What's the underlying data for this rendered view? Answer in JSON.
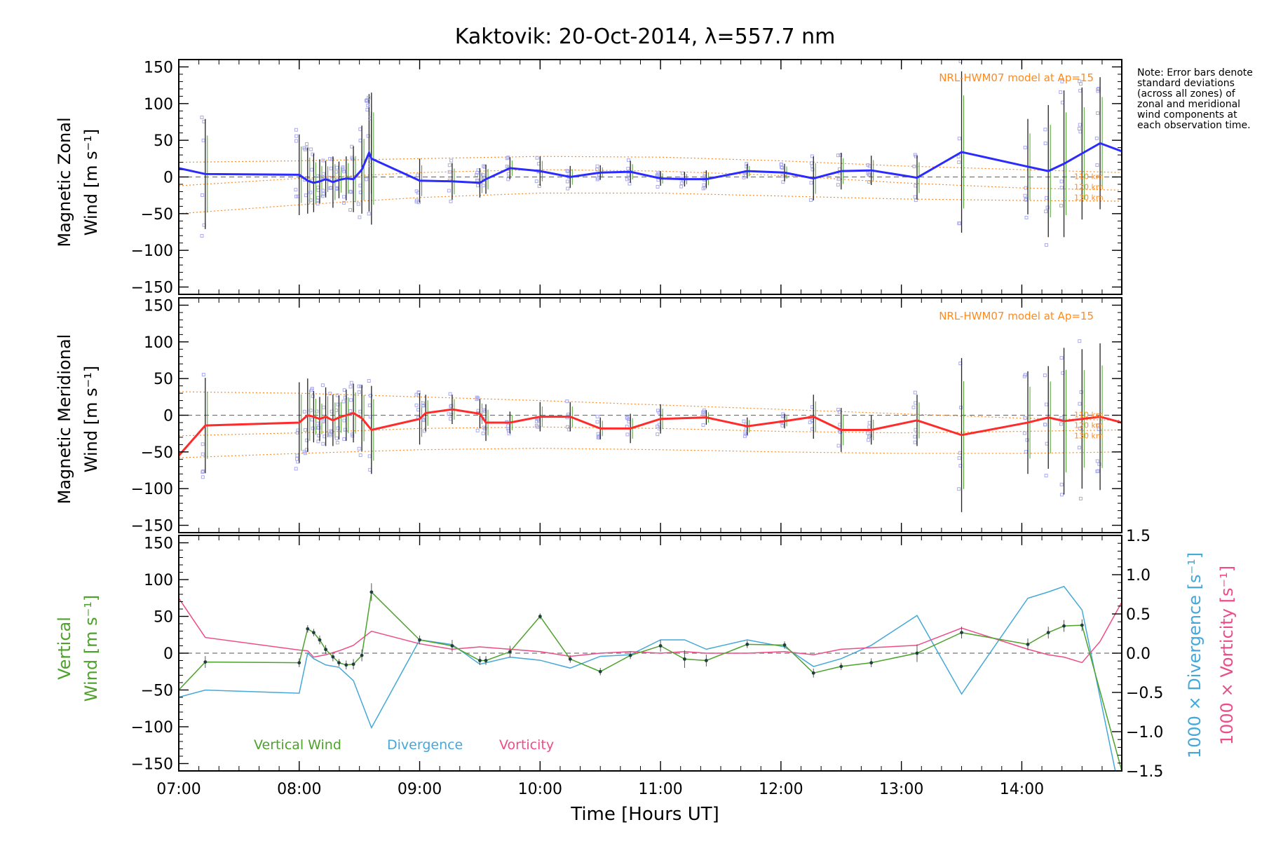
{
  "title": "Kaktovik: 20-Oct-2014, λ=557.7 nm",
  "note": "Note: Error bars denote standard deviations (across all zones) of zonal and meridional wind components at each observation time.",
  "colors": {
    "zonal": "#2b2bff",
    "meridional": "#ff2b2b",
    "vertical": "#4ca22a",
    "divergence": "#45a8d8",
    "vorticity": "#ee4c88",
    "model": "#ff8a1e",
    "scatter": "#aaaaee",
    "errorbar": "#222222",
    "zero": "#777777"
  },
  "chart_data": [
    {
      "name": "zonal",
      "type": "line",
      "ylabel_line1": "Magnetic Zonal",
      "ylabel_line2": "Wind [m s⁻¹]",
      "ylim": [
        -160,
        160
      ],
      "yticks": [
        150,
        100,
        50,
        0,
        -50,
        -100,
        -150
      ],
      "xlim": [
        7.0,
        14.83
      ],
      "model_label": "NRL-HWM07 model at Ap=15",
      "model_levels": [
        "110 km",
        "120 km",
        "130 km"
      ],
      "model_curves": [
        {
          "x": [
            7.0,
            8.0,
            9.0,
            10.0,
            11.0,
            12.0,
            13.0,
            14.0,
            14.83
          ],
          "y": [
            20,
            22,
            25,
            28,
            27,
            22,
            15,
            10,
            6
          ]
        },
        {
          "x": [
            7.0,
            8.0,
            9.0,
            10.0,
            11.0,
            12.0,
            13.0,
            14.0,
            14.83
          ],
          "y": [
            -12,
            -2,
            6,
            10,
            8,
            2,
            -8,
            -15,
            -18
          ]
        },
        {
          "x": [
            7.0,
            8.0,
            9.0,
            10.0,
            11.0,
            12.0,
            13.0,
            14.0,
            14.83
          ],
          "y": [
            -50,
            -38,
            -28,
            -22,
            -22,
            -26,
            -30,
            -32,
            -33
          ]
        }
      ],
      "x": [
        7.0,
        7.22,
        8.0,
        8.07,
        8.12,
        8.17,
        8.22,
        8.28,
        8.33,
        8.39,
        8.45,
        8.52,
        8.58,
        8.6,
        9.0,
        9.27,
        9.5,
        9.55,
        9.75,
        10.0,
        10.25,
        10.5,
        10.75,
        11.0,
        11.2,
        11.38,
        11.72,
        12.03,
        12.27,
        12.5,
        12.75,
        13.13,
        13.5,
        14.05,
        14.22,
        14.35,
        14.5,
        14.65,
        14.83
      ],
      "y": [
        12,
        4,
        3,
        -5,
        -8,
        -6,
        -3,
        -7,
        -4,
        -2,
        -3,
        10,
        33,
        25,
        -5,
        -6,
        -8,
        -3,
        12,
        8,
        0,
        6,
        7,
        -2,
        -3,
        -3,
        8,
        6,
        -2,
        8,
        9,
        -1,
        34,
        14,
        8,
        18,
        32,
        46,
        35
      ],
      "err": [
        0,
        75,
        55,
        45,
        40,
        30,
        25,
        35,
        25,
        30,
        45,
        60,
        80,
        90,
        30,
        25,
        20,
        20,
        15,
        20,
        15,
        10,
        15,
        10,
        10,
        12,
        10,
        12,
        30,
        25,
        20,
        30,
        110,
        65,
        90,
        100,
        90,
        90,
        0
      ]
    },
    {
      "name": "meridional",
      "type": "line",
      "ylabel_line1": "Magnetic Meridional",
      "ylabel_line2": "Wind [m s⁻¹]",
      "ylim": [
        -160,
        160
      ],
      "yticks": [
        150,
        100,
        50,
        0,
        -50,
        -100,
        -150
      ],
      "xlim": [
        7.0,
        14.83
      ],
      "model_label": "NRL-HWM07 model at Ap=15",
      "model_levels": [
        "110 km",
        "120 km",
        "130 km"
      ],
      "model_curves": [
        {
          "x": [
            7.0,
            8.0,
            9.0,
            10.0,
            11.0,
            12.0,
            13.0,
            14.0,
            14.83
          ],
          "y": [
            32,
            30,
            25,
            20,
            14,
            8,
            2,
            -4,
            -7
          ]
        },
        {
          "x": [
            7.0,
            8.0,
            9.0,
            10.0,
            11.0,
            12.0,
            13.0,
            14.0,
            14.83
          ],
          "y": [
            -28,
            -24,
            -18,
            -16,
            -18,
            -22,
            -24,
            -22,
            -20
          ]
        },
        {
          "x": [
            7.0,
            8.0,
            9.0,
            10.0,
            11.0,
            12.0,
            13.0,
            14.0,
            14.83
          ],
          "y": [
            -58,
            -52,
            -47,
            -45,
            -47,
            -50,
            -52,
            -52,
            -50
          ]
        }
      ],
      "x": [
        7.0,
        7.22,
        8.0,
        8.07,
        8.12,
        8.17,
        8.22,
        8.28,
        8.33,
        8.39,
        8.45,
        8.52,
        8.6,
        9.0,
        9.05,
        9.27,
        9.5,
        9.55,
        9.75,
        10.0,
        10.25,
        10.5,
        10.75,
        11.0,
        11.38,
        11.72,
        12.03,
        12.27,
        12.5,
        12.75,
        13.13,
        13.5,
        14.05,
        14.22,
        14.35,
        14.5,
        14.65,
        14.83
      ],
      "y": [
        -55,
        -14,
        -10,
        0,
        -2,
        -5,
        -2,
        -7,
        -3,
        0,
        3,
        -4,
        -20,
        -5,
        3,
        8,
        2,
        -10,
        -10,
        -2,
        -2,
        -18,
        -18,
        -5,
        -3,
        -15,
        -8,
        -2,
        -20,
        -20,
        -7,
        -27,
        -10,
        -3,
        -8,
        -5,
        -2,
        -10
      ],
      "err": [
        0,
        65,
        55,
        50,
        35,
        30,
        40,
        35,
        30,
        35,
        40,
        45,
        60,
        35,
        25,
        20,
        20,
        25,
        15,
        20,
        20,
        15,
        20,
        20,
        10,
        12,
        10,
        30,
        30,
        20,
        35,
        105,
        70,
        70,
        100,
        95,
        100,
        0
      ]
    },
    {
      "name": "vertical",
      "type": "line",
      "ylabel_line1": "Vertical",
      "ylabel_line2": "Wind [m s⁻¹]",
      "ylim": [
        -160,
        160
      ],
      "yticks": [
        150,
        100,
        50,
        0,
        -50,
        -100,
        -150
      ],
      "y2lim": [
        -1.5,
        1.5
      ],
      "y2ticks": [
        1.5,
        1.0,
        0.5,
        0.0,
        -0.5,
        -1.0,
        -1.5
      ],
      "y2tick_labels": [
        "1.5",
        "1.0",
        "0.5",
        "0.0",
        "−0.5",
        "−1.0",
        "−1.5"
      ],
      "y2label_div": "1000 × Divergence [s⁻¹]",
      "y2label_vor": "1000 × Vorticity [s⁻¹]",
      "xlim": [
        7.0,
        14.83
      ],
      "xticks": [
        7.0,
        8.0,
        9.0,
        10.0,
        11.0,
        12.0,
        13.0,
        14.0
      ],
      "xtick_labels": [
        "07:00",
        "08:00",
        "09:00",
        "10:00",
        "11:00",
        "12:00",
        "13:00",
        "14:00"
      ],
      "xlabel": "Time [Hours UT]",
      "legend": [
        "Vertical Wind",
        "Divergence",
        "Vorticity"
      ],
      "vertical_wind": {
        "x": [
          7.0,
          7.22,
          8.0,
          8.07,
          8.12,
          8.17,
          8.22,
          8.28,
          8.33,
          8.39,
          8.45,
          8.52,
          8.6,
          9.0,
          9.27,
          9.5,
          9.55,
          9.75,
          10.0,
          10.25,
          10.5,
          10.75,
          11.0,
          11.2,
          11.38,
          11.72,
          12.03,
          12.27,
          12.5,
          12.75,
          13.13,
          13.5,
          14.05,
          14.22,
          14.35,
          14.5,
          14.83
        ],
        "y": [
          -50,
          -12,
          -13,
          33,
          28,
          18,
          5,
          -5,
          -13,
          -16,
          -15,
          -3,
          83,
          18,
          10,
          -10,
          -10,
          2,
          50,
          -8,
          -25,
          -3,
          10,
          -8,
          -10,
          12,
          11,
          -27,
          -18,
          -13,
          0,
          28,
          12,
          28,
          37,
          38,
          -160
        ],
        "err": [
          0,
          8,
          6,
          5,
          5,
          6,
          6,
          6,
          5,
          6,
          7,
          8,
          12,
          6,
          8,
          6,
          6,
          8,
          4,
          5,
          5,
          5,
          8,
          12,
          8,
          5,
          5,
          6,
          5,
          6,
          12,
          8,
          8,
          8,
          8,
          8,
          0
        ]
      },
      "divergence": {
        "x": [
          7.0,
          7.22,
          8.0,
          8.07,
          8.12,
          8.22,
          8.33,
          8.45,
          8.6,
          9.0,
          9.27,
          9.5,
          9.75,
          10.0,
          10.25,
          10.5,
          10.75,
          11.0,
          11.2,
          11.38,
          11.72,
          12.03,
          12.27,
          12.5,
          12.75,
          13.13,
          13.5,
          14.05,
          14.22,
          14.35,
          14.5,
          14.83
        ],
        "y": [
          -0.56,
          -0.47,
          -0.51,
          0.0,
          -0.07,
          -0.15,
          -0.18,
          -0.35,
          -0.95,
          0.17,
          0.11,
          -0.14,
          -0.05,
          -0.09,
          -0.19,
          -0.04,
          -0.02,
          0.17,
          0.17,
          0.05,
          0.17,
          0.08,
          -0.17,
          -0.07,
          0.1,
          0.48,
          -0.52,
          0.7,
          0.78,
          0.85,
          0.55,
          -1.9
        ]
      },
      "vorticity": {
        "x": [
          7.0,
          7.22,
          8.0,
          8.07,
          8.12,
          8.22,
          8.33,
          8.45,
          8.6,
          9.0,
          9.27,
          9.5,
          9.75,
          10.0,
          10.25,
          10.5,
          10.75,
          11.0,
          11.2,
          11.38,
          11.72,
          12.03,
          12.27,
          12.5,
          12.75,
          13.13,
          13.5,
          14.05,
          14.22,
          14.35,
          14.5,
          14.65,
          14.83
        ],
        "y": [
          0.7,
          0.2,
          0.04,
          0.03,
          -0.05,
          -0.02,
          0.03,
          0.1,
          0.28,
          0.12,
          0.05,
          0.08,
          0.05,
          0.02,
          -0.04,
          0.0,
          0.02,
          0.0,
          0.02,
          0.0,
          0.0,
          0.02,
          -0.02,
          0.05,
          0.07,
          0.1,
          0.32,
          0.05,
          -0.02,
          -0.05,
          -0.12,
          0.15,
          0.65
        ]
      }
    }
  ]
}
